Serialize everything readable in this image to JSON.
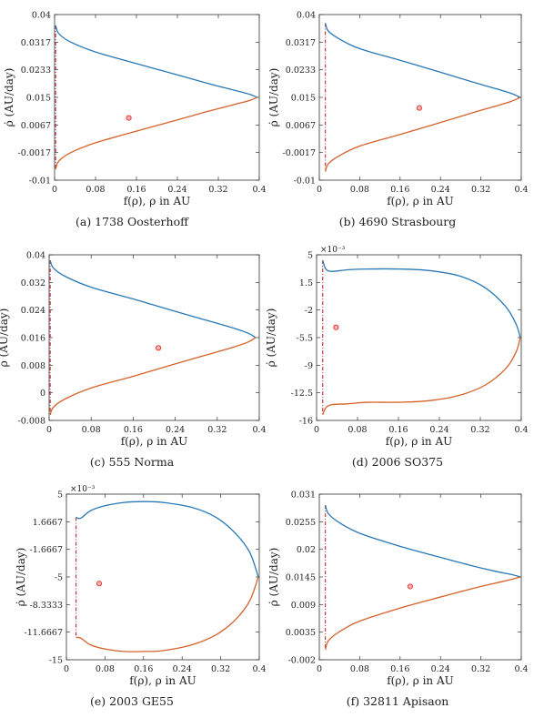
{
  "colors": {
    "upper_curve": "#2878b5",
    "lower_curve": "#d4622a",
    "boundary_line": "#c0282d",
    "marker": "#e23b3b",
    "axes": "#333333"
  },
  "chart_data": [
    {
      "type": "line",
      "caption": "(a) 1738 Oosterhoff",
      "xlabel": "f(ρ),  ρ in AU",
      "ylabel": "ρ̇ (AU/day)",
      "exponent_label": "",
      "xlim": [
        0,
        0.4
      ],
      "ylim": [
        -0.01,
        0.04
      ],
      "xticks": [
        "0",
        "0.08",
        "0.16",
        "0.24",
        "0.32",
        "0.4"
      ],
      "yticks": [
        "-0.01",
        "-0.0017",
        "0.0067",
        "0.015",
        "0.0233",
        "0.0317",
        "0.04"
      ],
      "boundary_x": 0.002,
      "tip": [
        0.396,
        0.015
      ],
      "upper_curve": [
        [
          0.002,
          0.0367
        ],
        [
          0.008,
          0.0343
        ],
        [
          0.03,
          0.0318
        ],
        [
          0.08,
          0.0287
        ],
        [
          0.16,
          0.0252
        ],
        [
          0.24,
          0.0218
        ],
        [
          0.3,
          0.0192
        ],
        [
          0.35,
          0.0172
        ],
        [
          0.38,
          0.016
        ],
        [
          0.396,
          0.015
        ]
      ],
      "lower_curve": [
        [
          0.002,
          -0.0067
        ],
        [
          0.008,
          -0.0043
        ],
        [
          0.03,
          -0.0018
        ],
        [
          0.08,
          0.0013
        ],
        [
          0.16,
          0.0048
        ],
        [
          0.24,
          0.0082
        ],
        [
          0.3,
          0.0108
        ],
        [
          0.35,
          0.0128
        ],
        [
          0.38,
          0.014
        ],
        [
          0.396,
          0.015
        ]
      ],
      "point": [
        0.145,
        0.0088
      ]
    },
    {
      "type": "line",
      "caption": "(b) 4690 Strasbourg",
      "xlabel": "f(ρ),  ρ in AU",
      "ylabel": "ρ̇ (AU/day)",
      "exponent_label": "",
      "xlim": [
        0,
        0.4
      ],
      "ylim": [
        -0.01,
        0.04
      ],
      "xticks": [
        "0",
        "0.08",
        "0.16",
        "0.24",
        "0.32",
        "0.4"
      ],
      "yticks": [
        "-0.01",
        "-0.0017",
        "0.0067",
        "0.015",
        "0.0233",
        "0.0317",
        "0.04"
      ],
      "boundary_x": 0.012,
      "tip": [
        0.398,
        0.015
      ],
      "upper_curve": [
        [
          0.012,
          0.0374
        ],
        [
          0.018,
          0.035
        ],
        [
          0.04,
          0.0326
        ],
        [
          0.08,
          0.0297
        ],
        [
          0.16,
          0.0262
        ],
        [
          0.24,
          0.0226
        ],
        [
          0.3,
          0.0198
        ],
        [
          0.35,
          0.0176
        ],
        [
          0.38,
          0.0162
        ],
        [
          0.398,
          0.015
        ]
      ],
      "lower_curve": [
        [
          0.012,
          -0.0074
        ],
        [
          0.018,
          -0.005
        ],
        [
          0.04,
          -0.0026
        ],
        [
          0.08,
          0.0003
        ],
        [
          0.16,
          0.0038
        ],
        [
          0.24,
          0.0074
        ],
        [
          0.3,
          0.0102
        ],
        [
          0.35,
          0.0124
        ],
        [
          0.38,
          0.0138
        ],
        [
          0.398,
          0.015
        ]
      ],
      "point": [
        0.198,
        0.0118
      ]
    },
    {
      "type": "line",
      "caption": "(c) 555 Norma",
      "xlabel": "f(ρ),  ρ in AU",
      "ylabel": "ρ̇ (AU/day)",
      "exponent_label": "",
      "xlim": [
        0,
        0.4
      ],
      "ylim": [
        -0.008,
        0.04
      ],
      "xticks": [
        "0",
        "0.08",
        "0.16",
        "0.24",
        "0.32",
        "0.4"
      ],
      "yticks": [
        "-0.008",
        "0",
        "0.008",
        "0.016",
        "0.024",
        "0.032",
        "0.04"
      ],
      "boundary_x": 0.002,
      "tip": [
        0.393,
        0.016
      ],
      "upper_curve": [
        [
          0.002,
          0.0384
        ],
        [
          0.008,
          0.0362
        ],
        [
          0.03,
          0.0338
        ],
        [
          0.08,
          0.0306
        ],
        [
          0.16,
          0.0272
        ],
        [
          0.24,
          0.0236
        ],
        [
          0.3,
          0.021
        ],
        [
          0.35,
          0.0188
        ],
        [
          0.38,
          0.0172
        ],
        [
          0.393,
          0.016
        ]
      ],
      "lower_curve": [
        [
          0.002,
          -0.0064
        ],
        [
          0.008,
          -0.0042
        ],
        [
          0.03,
          -0.0018
        ],
        [
          0.08,
          0.0014
        ],
        [
          0.16,
          0.0048
        ],
        [
          0.24,
          0.0084
        ],
        [
          0.3,
          0.011
        ],
        [
          0.35,
          0.0132
        ],
        [
          0.38,
          0.0148
        ],
        [
          0.393,
          0.016
        ]
      ],
      "point": [
        0.208,
        0.013
      ]
    },
    {
      "type": "line",
      "caption": "(d) 2006 SO375",
      "xlabel": "f(ρ),  ρ in AU",
      "ylabel": "ρ̇ (AU/day)",
      "exponent_label": "×10⁻³",
      "xlim": [
        0,
        0.4
      ],
      "ylim": [
        -16,
        5
      ],
      "xticks": [
        "0",
        "0.08",
        "0.16",
        "0.24",
        "0.32",
        "0.4"
      ],
      "yticks": [
        "-16",
        "-12.5",
        "-9",
        "-5.5",
        "-2",
        "1.5",
        "5"
      ],
      "boundary_x": 0.012,
      "tip": [
        0.398,
        -5.5
      ],
      "upper_curve": [
        [
          0.012,
          4.3
        ],
        [
          0.018,
          3.2
        ],
        [
          0.03,
          2.9
        ],
        [
          0.06,
          3.1
        ],
        [
          0.1,
          3.2
        ],
        [
          0.16,
          3.2
        ],
        [
          0.22,
          3.0
        ],
        [
          0.28,
          2.3
        ],
        [
          0.33,
          0.8
        ],
        [
          0.37,
          -1.6
        ],
        [
          0.39,
          -3.8
        ],
        [
          0.398,
          -5.5
        ]
      ],
      "lower_curve": [
        [
          0.012,
          -15.3
        ],
        [
          0.018,
          -14.4
        ],
        [
          0.03,
          -14.0
        ],
        [
          0.06,
          -13.9
        ],
        [
          0.1,
          -13.7
        ],
        [
          0.16,
          -13.7
        ],
        [
          0.22,
          -13.5
        ],
        [
          0.28,
          -12.8
        ],
        [
          0.33,
          -11.5
        ],
        [
          0.37,
          -9.4
        ],
        [
          0.39,
          -7.3
        ],
        [
          0.398,
          -5.5
        ]
      ],
      "point": [
        0.038,
        -4.2
      ]
    },
    {
      "type": "line",
      "caption": "(e) 2003 GE55",
      "xlabel": "f(ρ),  ρ in AU",
      "ylabel": "ρ̇ (AU/day)",
      "exponent_label": "×10⁻³",
      "xlim": [
        0,
        0.4
      ],
      "ylim": [
        -15,
        5
      ],
      "xticks": [
        "0",
        "0.08",
        "0.16",
        "0.24",
        "0.32",
        "0.4"
      ],
      "yticks": [
        "-15",
        "-11.6667",
        "-8.3333",
        "-5",
        "-1.6667",
        "1.6667",
        "5"
      ],
      "boundary_x": 0.02,
      "tip": [
        0.398,
        -5
      ],
      "upper_curve": [
        [
          0.02,
          2.2
        ],
        [
          0.03,
          2.1
        ],
        [
          0.05,
          3.0
        ],
        [
          0.08,
          3.6
        ],
        [
          0.12,
          4.0
        ],
        [
          0.16,
          4.1
        ],
        [
          0.2,
          4.0
        ],
        [
          0.26,
          3.4
        ],
        [
          0.31,
          2.2
        ],
        [
          0.35,
          0.3
        ],
        [
          0.38,
          -2.0
        ],
        [
          0.398,
          -5
        ]
      ],
      "lower_curve": [
        [
          0.02,
          -12.3
        ],
        [
          0.03,
          -12.4
        ],
        [
          0.05,
          -13.2
        ],
        [
          0.08,
          -13.7
        ],
        [
          0.12,
          -14.0
        ],
        [
          0.16,
          -14.0
        ],
        [
          0.2,
          -13.9
        ],
        [
          0.26,
          -13.2
        ],
        [
          0.31,
          -12.0
        ],
        [
          0.35,
          -10.2
        ],
        [
          0.38,
          -7.9
        ],
        [
          0.398,
          -5
        ]
      ],
      "point": [
        0.068,
        -5.8
      ]
    },
    {
      "type": "line",
      "caption": "(f) 32811 Apisaon",
      "xlabel": "f(ρ),  ρ in AU",
      "ylabel": "ρ̇ (AU/day)",
      "exponent_label": "",
      "xlim": [
        0,
        0.4
      ],
      "ylim": [
        -0.002,
        0.031
      ],
      "xticks": [
        "0",
        "0.08",
        "0.16",
        "0.24",
        "0.32",
        "0.4"
      ],
      "yticks": [
        "-0.002",
        "0.0035",
        "0.009",
        "0.0145",
        "0.02",
        "0.0255",
        "0.031"
      ],
      "boundary_x": 0.012,
      "tip": [
        0.398,
        0.0145
      ],
      "upper_curve": [
        [
          0.012,
          0.0288
        ],
        [
          0.018,
          0.0271
        ],
        [
          0.04,
          0.0253
        ],
        [
          0.08,
          0.0232
        ],
        [
          0.16,
          0.0206
        ],
        [
          0.24,
          0.0184
        ],
        [
          0.3,
          0.0168
        ],
        [
          0.35,
          0.0156
        ],
        [
          0.38,
          0.015
        ],
        [
          0.398,
          0.0145
        ]
      ],
      "lower_curve": [
        [
          0.012,
          0.0
        ],
        [
          0.018,
          0.0018
        ],
        [
          0.04,
          0.0036
        ],
        [
          0.08,
          0.0057
        ],
        [
          0.16,
          0.0083
        ],
        [
          0.24,
          0.0105
        ],
        [
          0.3,
          0.0121
        ],
        [
          0.35,
          0.0133
        ],
        [
          0.38,
          0.014
        ],
        [
          0.398,
          0.0145
        ]
      ],
      "point": [
        0.18,
        0.0126
      ]
    }
  ]
}
